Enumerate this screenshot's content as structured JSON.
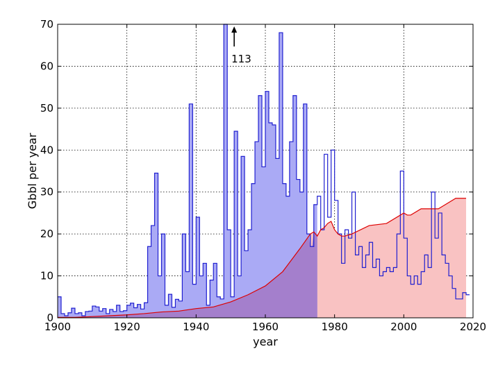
{
  "chart_data": {
    "type": "area",
    "xlabel": "year",
    "ylabel": "Gbbl per year",
    "xlim": [
      1900,
      2020
    ],
    "ylim": [
      0,
      70
    ],
    "xticks": [
      1900,
      1920,
      1940,
      1960,
      1980,
      2000,
      2020
    ],
    "yticks": [
      0,
      10,
      20,
      30,
      40,
      50,
      60,
      70
    ],
    "grid": true,
    "annotation": {
      "text": "113",
      "x": 1951,
      "y": 70
    },
    "colors": {
      "discovery_fill": "#aaaaf5",
      "discovery_line": "#1f1fd0",
      "production_fill": "#f9c2c2",
      "production_line": "#dd0000",
      "overlap_fill": "#a47fcc"
    },
    "series": [
      {
        "kind": "step",
        "filled_until": 1975,
        "x": [
          1900,
          1901,
          1902,
          1903,
          1904,
          1905,
          1906,
          1907,
          1908,
          1909,
          1910,
          1911,
          1912,
          1913,
          1914,
          1915,
          1916,
          1917,
          1918,
          1919,
          1920,
          1921,
          1922,
          1923,
          1924,
          1925,
          1926,
          1927,
          1928,
          1929,
          1930,
          1931,
          1932,
          1933,
          1934,
          1935,
          1936,
          1937,
          1938,
          1939,
          1940,
          1941,
          1942,
          1943,
          1944,
          1945,
          1946,
          1947,
          1948,
          1949,
          1950,
          1951,
          1952,
          1953,
          1954,
          1955,
          1956,
          1957,
          1958,
          1959,
          1960,
          1961,
          1962,
          1963,
          1964,
          1965,
          1966,
          1967,
          1968,
          1969,
          1970,
          1971,
          1972,
          1973,
          1974,
          1975,
          1976,
          1977,
          1978,
          1979,
          1980,
          1981,
          1982,
          1983,
          1984,
          1985,
          1986,
          1987,
          1988,
          1989,
          1990,
          1991,
          1992,
          1993,
          1994,
          1995,
          1996,
          1997,
          1998,
          1999,
          2000,
          2001,
          2002,
          2003,
          2004,
          2005,
          2006,
          2007,
          2008,
          2009,
          2010,
          2011,
          2012,
          2013,
          2014,
          2015,
          2016,
          2017,
          2018
        ],
        "values": [
          5,
          1,
          0.5,
          1.2,
          2.3,
          1,
          1.2,
          0.5,
          1.5,
          1.6,
          2.8,
          2.6,
          1.6,
          2.2,
          1,
          2,
          1.5,
          3,
          1.5,
          1.7,
          3,
          3.5,
          2.4,
          3.2,
          2.1,
          3.6,
          17,
          22,
          34.5,
          10,
          20,
          3,
          5.6,
          2.5,
          4.4,
          4,
          20,
          11,
          51,
          8,
          24,
          10,
          13,
          3,
          9,
          13,
          5,
          4.5,
          113,
          21,
          5,
          44.5,
          10,
          38.5,
          16,
          21,
          32,
          42,
          53,
          36,
          54,
          46.5,
          46,
          38,
          68,
          32,
          29,
          42,
          53,
          33,
          30,
          51,
          20,
          17,
          27,
          29,
          21,
          39,
          24,
          40,
          28,
          20,
          13,
          21,
          19,
          30,
          15,
          17,
          12,
          15,
          18,
          12,
          14,
          10,
          11,
          12,
          11,
          12,
          20,
          35,
          19,
          10,
          8,
          10,
          8,
          11,
          15,
          12,
          30,
          19,
          25,
          15,
          13,
          10,
          7,
          4.5,
          4.5,
          6,
          5.5
        ]
      },
      {
        "kind": "line",
        "x": [
          1900,
          1905,
          1910,
          1915,
          1920,
          1925,
          1930,
          1935,
          1940,
          1945,
          1950,
          1955,
          1960,
          1965,
          1970,
          1973,
          1974,
          1975,
          1976,
          1977,
          1978,
          1979,
          1980,
          1981,
          1982,
          1983,
          1985,
          1990,
          1995,
          2000,
          2001,
          2002,
          2005,
          2010,
          2015,
          2018
        ],
        "values": [
          0.1,
          0.1,
          0.3,
          0.5,
          0.7,
          1,
          1.4,
          1.6,
          2.2,
          2.6,
          3.8,
          5.5,
          7.6,
          11,
          16.5,
          20,
          20.5,
          19.5,
          21,
          21.5,
          22.5,
          23,
          21,
          20,
          19.5,
          19.5,
          20,
          22,
          22.5,
          25,
          24.5,
          24.5,
          26,
          26,
          28.5,
          28.5
        ]
      }
    ]
  }
}
